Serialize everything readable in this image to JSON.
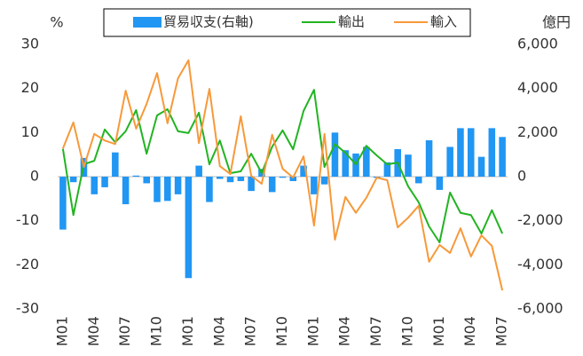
{
  "chart_data": {
    "type": "bar-line",
    "y_label": "%",
    "y2_label": "億円",
    "categories": [
      "M01",
      null,
      null,
      "M04",
      null,
      null,
      "M07",
      null,
      null,
      "M10",
      null,
      null,
      "M01",
      null,
      null,
      "M04",
      null,
      null,
      "M07",
      null,
      null,
      "M10",
      null,
      null,
      "M01",
      null,
      null,
      "M04",
      null,
      null,
      "M07",
      null,
      null,
      "M10",
      null,
      null,
      "M01",
      null,
      null,
      "M04",
      null,
      null,
      "M07"
    ],
    "ylim": [
      -30,
      30
    ],
    "yticks": [
      -30,
      -20,
      -10,
      0,
      10,
      20,
      30
    ],
    "y2lim": [
      -6000,
      6000
    ],
    "y2ticks": [
      {
        "value": -6000,
        "label": "-6,000"
      },
      {
        "value": -4000,
        "label": "-4,000"
      },
      {
        "value": -2000,
        "label": "-2,000"
      },
      0,
      {
        "value": 2000,
        "label": "2,000"
      },
      {
        "value": 4000,
        "label": "4,000"
      },
      {
        "value": 6000,
        "label": "6,000"
      }
    ],
    "legend": "top",
    "series": [
      {
        "name": "貿易収支(右軸)",
        "type": "bar",
        "axis": "y2",
        "color": "#2196f3",
        "values": [
          -2400,
          -250,
          850,
          -800,
          -480,
          1100,
          -1250,
          50,
          -300,
          -1150,
          -1100,
          -800,
          -4600,
          500,
          -1150,
          -100,
          -250,
          -200,
          -650,
          350,
          -700,
          -50,
          -200,
          500,
          -800,
          -350,
          2000,
          1200,
          1050,
          1350,
          -50,
          650,
          1250,
          1000,
          -300,
          1650,
          -600,
          1350,
          2200,
          2200,
          900,
          2200,
          1800
        ]
      },
      {
        "name": "輸出",
        "type": "line",
        "color": "#22b422",
        "values": [
          6.3,
          -8.7,
          2.8,
          3.6,
          10.7,
          7.8,
          10.3,
          15.1,
          5.2,
          13.9,
          15.3,
          10.3,
          9.9,
          14.5,
          2.8,
          8.2,
          0.8,
          1.2,
          5.2,
          0.8,
          6.8,
          10.5,
          6.2,
          14.9,
          19.7,
          2.2,
          7.4,
          5.4,
          2.8,
          7,
          4.8,
          2.8,
          3.2,
          -2.2,
          -5.8,
          -11.3,
          -14.9,
          -3.6,
          -8.2,
          -8.7,
          -12.9,
          -7.6,
          -12.9
        ]
      },
      {
        "name": "輸入",
        "type": "line",
        "color": "#f7993a",
        "values": [
          6.4,
          12.3,
          2.2,
          9.7,
          8.2,
          7.4,
          19.5,
          10.9,
          16.5,
          23.5,
          12.1,
          22.3,
          26.4,
          7.6,
          19.9,
          2.4,
          0.6,
          13.7,
          0.2,
          -1.6,
          9.5,
          1.8,
          -0.2,
          4.6,
          -11.1,
          9.7,
          -14.3,
          -4.6,
          -8.2,
          -4.8,
          -0.2,
          -0.8,
          -11.5,
          -9.3,
          -6.6,
          -19.3,
          -15.5,
          -17.3,
          -11.7,
          -18.1,
          -13.3,
          -15.7,
          -25.8
        ]
      }
    ]
  }
}
